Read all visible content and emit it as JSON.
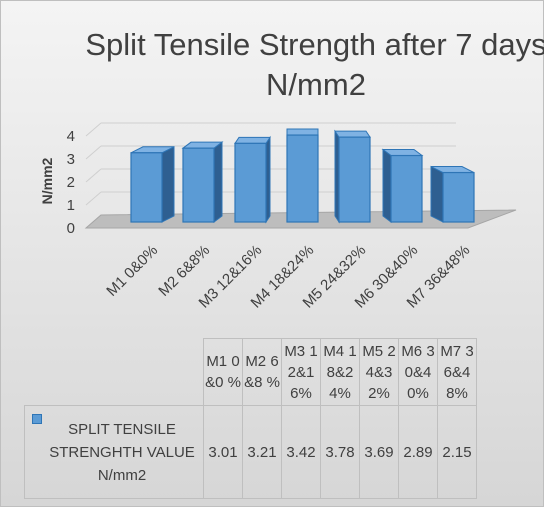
{
  "chart_data": {
    "type": "bar",
    "title": "Split Tensile Strength after 7 days N/mm2",
    "ylabel": "N/mm2",
    "xlabel": "",
    "ylim": [
      0,
      4
    ],
    "yticks": [
      "0",
      "1",
      "2",
      "3",
      "4"
    ],
    "grid": true,
    "categories": [
      "M1 0&0%",
      "M2 6&8%",
      "M3 12&16%",
      "M4 18&24%",
      "M5 24&32%",
      "M6 30&40%",
      "M7 36&48%"
    ],
    "table_headers": [
      "M1 0&0 %",
      "M2 6&8 %",
      "M3 12&1 6%",
      "M4 18&2 4%",
      "M5 24&3 2%",
      "M6 30&4 0%",
      "M7 36&4 8%"
    ],
    "series": [
      {
        "name": "SPLIT TENSILE STRENGHTH VALUE N/mm2",
        "values": [
          3.01,
          3.21,
          3.42,
          3.78,
          3.69,
          2.89,
          2.15
        ],
        "labels": [
          "3.01",
          "3.21",
          "3.42",
          "3.78",
          "3.69",
          "2.89",
          "2.15"
        ]
      }
    ],
    "colors": {
      "front": "#5b9bd5",
      "side": "#2e5f91",
      "top": "#7fb2e3",
      "edge": "#2e75b6"
    }
  }
}
